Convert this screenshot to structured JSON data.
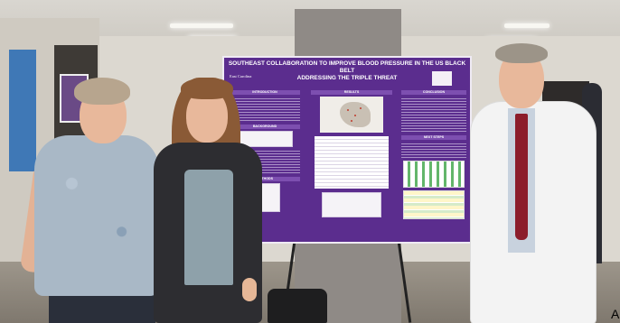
{
  "poster": {
    "title_line1": "SOUTHEAST COLLABORATION TO IMPROVE BLOOD PRESSURE IN THE US BLACK BELT",
    "title_line2": "ADDRESSING THE TRIPLE THREAT",
    "logo_text": "East Carolina",
    "sections": {
      "introduction": "INTRODUCTION",
      "results": "RESULTS",
      "conclusion": "CONCLUSION",
      "background": "BACKGROUND",
      "methods": "METHODS",
      "next_steps": "NEXT STEPS"
    }
  },
  "edge_glyph": "A",
  "colors": {
    "poster_purple": "#5b2d8e",
    "section_purple": "#7d4fb0",
    "coat_white": "#f3f3f3",
    "tie_red": "#8c1d2b"
  }
}
